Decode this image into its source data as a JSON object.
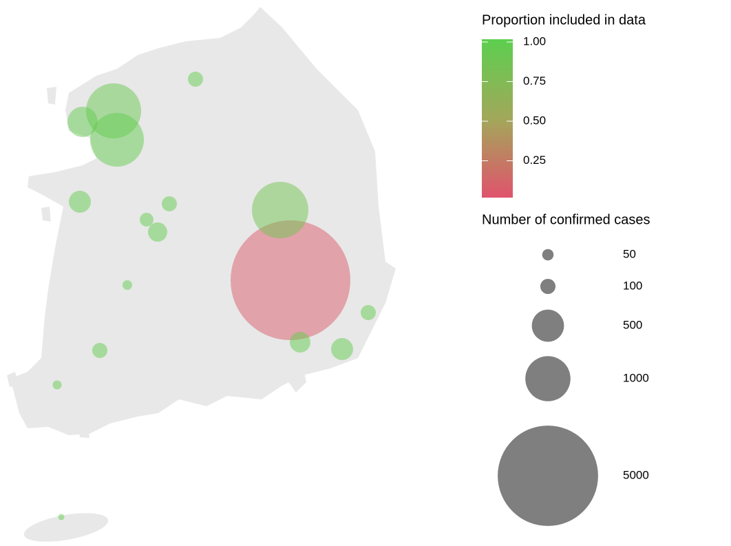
{
  "legend": {
    "color_title": "Proportion included in data",
    "color_ticks": [
      {
        "value": 1,
        "label": "1.00"
      },
      {
        "value": 0.75,
        "label": "0.75"
      },
      {
        "value": 0.5,
        "label": "0.50"
      },
      {
        "value": 0.25,
        "label": "0.25"
      }
    ],
    "colors": [
      "#e0536c",
      "#a2a85a",
      "#5ccf4f"
    ],
    "size_title": "Number of confirmed cases",
    "size_breaks": [
      50,
      100,
      500,
      1000,
      5000
    ]
  },
  "bubbles": [
    {
      "cases": 7125,
      "proportion": 0.05
    },
    {
      "cases": 1570,
      "proportion": 0.85
    },
    {
      "cases": 1494,
      "proportion": 0.9
    },
    {
      "cases": 1420,
      "proportion": 0.95
    },
    {
      "cases": 441,
      "proportion": 0.95
    },
    {
      "cases": 99,
      "proportion": 0.95
    },
    {
      "cases": 226,
      "proportion": 0.95
    },
    {
      "cases": 79,
      "proportion": 0.95
    },
    {
      "cases": 99,
      "proportion": 0.95
    },
    {
      "cases": 170,
      "proportion": 0.95
    },
    {
      "cases": 31,
      "proportion": 0.95
    },
    {
      "cases": 99,
      "proportion": 0.95
    },
    {
      "cases": 25,
      "proportion": 0.95
    },
    {
      "cases": 197,
      "proportion": 0.95
    },
    {
      "cases": 226,
      "proportion": 0.95
    },
    {
      "cases": 99,
      "proportion": 0.95
    },
    {
      "cases": 4,
      "proportion": 0.95
    }
  ]
}
